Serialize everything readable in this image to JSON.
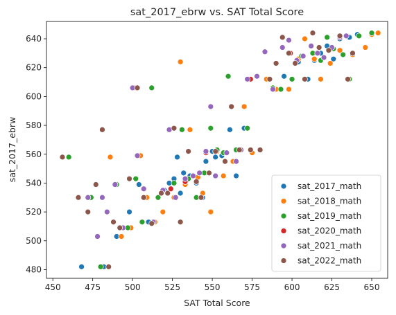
{
  "chart_data": {
    "type": "scatter",
    "title": "sat_2017_ebrw vs. SAT Total Score",
    "xlabel": "SAT Total Score",
    "ylabel": "sat_2017_ebrw",
    "xlim": [
      446,
      660
    ],
    "ylim": [
      474,
      652
    ],
    "x_ticks": [
      450,
      475,
      500,
      525,
      550,
      575,
      600,
      625,
      650
    ],
    "y_ticks": [
      480,
      500,
      520,
      540,
      560,
      580,
      600,
      620,
      640
    ],
    "grid": false,
    "legend_position": "lower-right",
    "series": [
      {
        "name": "sat_2017_math",
        "color": "#1f77b4",
        "points": [
          [
            468,
            482
          ],
          [
            482,
            482
          ],
          [
            490,
            503
          ],
          [
            498,
            520
          ],
          [
            504,
            539
          ],
          [
            510,
            513
          ],
          [
            520,
            535
          ],
          [
            523,
            540
          ],
          [
            526,
            543
          ],
          [
            528,
            558
          ],
          [
            530,
            533
          ],
          [
            532,
            547
          ],
          [
            536,
            545
          ],
          [
            540,
            540
          ],
          [
            544,
            530
          ],
          [
            546,
            555
          ],
          [
            550,
            562
          ],
          [
            552,
            558
          ],
          [
            556,
            559
          ],
          [
            561,
            577
          ],
          [
            570,
            578
          ],
          [
            565,
            545
          ],
          [
            595,
            614
          ],
          [
            604,
            624
          ],
          [
            610,
            612
          ],
          [
            614,
            625
          ],
          [
            618,
            630
          ],
          [
            622,
            635
          ],
          [
            626,
            626
          ],
          [
            630,
            640
          ],
          [
            636,
            641
          ],
          [
            641,
            643
          ],
          [
            650,
            644
          ]
        ]
      },
      {
        "name": "sat_2018_math",
        "color": "#ff7f0e",
        "points": [
          [
            486,
            558
          ],
          [
            493,
            503
          ],
          [
            499,
            509
          ],
          [
            505,
            559
          ],
          [
            509,
            530
          ],
          [
            514,
            513
          ],
          [
            519,
            520
          ],
          [
            526,
            530
          ],
          [
            530,
            624
          ],
          [
            533,
            539
          ],
          [
            536,
            577
          ],
          [
            541,
            544
          ],
          [
            544,
            533
          ],
          [
            549,
            520
          ],
          [
            553,
            562
          ],
          [
            557,
            545
          ],
          [
            563,
            555
          ],
          [
            570,
            593
          ],
          [
            575,
            561
          ],
          [
            584,
            612
          ],
          [
            590,
            605
          ],
          [
            598,
            605
          ],
          [
            604,
            626
          ],
          [
            608,
            640
          ],
          [
            614,
            626
          ],
          [
            618,
            612
          ],
          [
            624,
            623
          ],
          [
            630,
            632
          ],
          [
            638,
            629
          ],
          [
            646,
            634
          ],
          [
            650,
            643
          ],
          [
            654,
            644
          ]
        ]
      },
      {
        "name": "sat_2019_math",
        "color": "#2ca02c",
        "points": [
          [
            460,
            558
          ],
          [
            474,
            530
          ],
          [
            480,
            482
          ],
          [
            484,
            520
          ],
          [
            490,
            539
          ],
          [
            497,
            509
          ],
          [
            502,
            543
          ],
          [
            506,
            513
          ],
          [
            512,
            606
          ],
          [
            516,
            530
          ],
          [
            522,
            533
          ],
          [
            526,
            540
          ],
          [
            531,
            577
          ],
          [
            535,
            543
          ],
          [
            540,
            530
          ],
          [
            545,
            547
          ],
          [
            549,
            578
          ],
          [
            553,
            563
          ],
          [
            557,
            561
          ],
          [
            560,
            614
          ],
          [
            565,
            563
          ],
          [
            572,
            578
          ],
          [
            578,
            614
          ],
          [
            588,
            606
          ],
          [
            593,
            605
          ],
          [
            600,
            612
          ],
          [
            606,
            628
          ],
          [
            613,
            630
          ],
          [
            618,
            625
          ],
          [
            622,
            641
          ],
          [
            626,
            633
          ],
          [
            632,
            629
          ],
          [
            636,
            612
          ],
          [
            642,
            642
          ],
          [
            650,
            644
          ]
        ]
      },
      {
        "name": "sat_2020_math",
        "color": "#d62728",
        "points": [
          [
            502,
            606
          ],
          [
            524,
            536
          ],
          [
            533,
            541
          ],
          [
            546,
            561
          ],
          [
            574,
            612
          ],
          [
            599,
            630
          ],
          [
            616,
            630
          ]
        ]
      },
      {
        "name": "sat_2021_math",
        "color": "#9467bd",
        "points": [
          [
            472,
            530
          ],
          [
            478,
            503
          ],
          [
            481,
            530
          ],
          [
            484,
            520
          ],
          [
            489,
            539
          ],
          [
            494,
            509
          ],
          [
            500,
            606
          ],
          [
            503,
            559
          ],
          [
            507,
            536
          ],
          [
            513,
            513
          ],
          [
            519,
            535
          ],
          [
            523,
            577
          ],
          [
            527,
            530
          ],
          [
            533,
            543
          ],
          [
            538,
            545
          ],
          [
            542,
            547
          ],
          [
            546,
            562
          ],
          [
            549,
            593
          ],
          [
            552,
            545
          ],
          [
            559,
            561
          ],
          [
            565,
            555
          ],
          [
            568,
            563
          ],
          [
            572,
            612
          ],
          [
            578,
            614
          ],
          [
            583,
            631
          ],
          [
            588,
            605
          ],
          [
            594,
            634
          ],
          [
            598,
            639
          ],
          [
            603,
            625
          ],
          [
            607,
            628
          ],
          [
            612,
            635
          ],
          [
            616,
            630
          ],
          [
            620,
            627
          ],
          [
            625,
            634
          ],
          [
            630,
            641
          ],
          [
            634,
            642
          ]
        ]
      },
      {
        "name": "sat_2022_math",
        "color": "#8c564b",
        "points": [
          [
            456,
            558
          ],
          [
            466,
            530
          ],
          [
            472,
            520
          ],
          [
            477,
            539
          ],
          [
            481,
            577
          ],
          [
            485,
            482
          ],
          [
            488,
            513
          ],
          [
            492,
            509
          ],
          [
            498,
            543
          ],
          [
            503,
            606
          ],
          [
            507,
            530
          ],
          [
            512,
            512
          ],
          [
            518,
            533
          ],
          [
            522,
            533
          ],
          [
            526,
            578
          ],
          [
            530,
            513
          ],
          [
            535,
            562
          ],
          [
            540,
            541
          ],
          [
            543,
            530
          ],
          [
            548,
            547
          ],
          [
            552,
            562
          ],
          [
            558,
            555
          ],
          [
            562,
            593
          ],
          [
            567,
            563
          ],
          [
            574,
            563
          ],
          [
            580,
            563
          ],
          [
            586,
            612
          ],
          [
            590,
            623
          ],
          [
            594,
            641
          ],
          [
            598,
            630
          ],
          [
            602,
            623
          ],
          [
            608,
            612
          ],
          [
            613,
            644
          ],
          [
            617,
            634
          ],
          [
            623,
            632
          ],
          [
            630,
            642
          ],
          [
            635,
            612
          ],
          [
            638,
            630
          ]
        ]
      }
    ]
  }
}
